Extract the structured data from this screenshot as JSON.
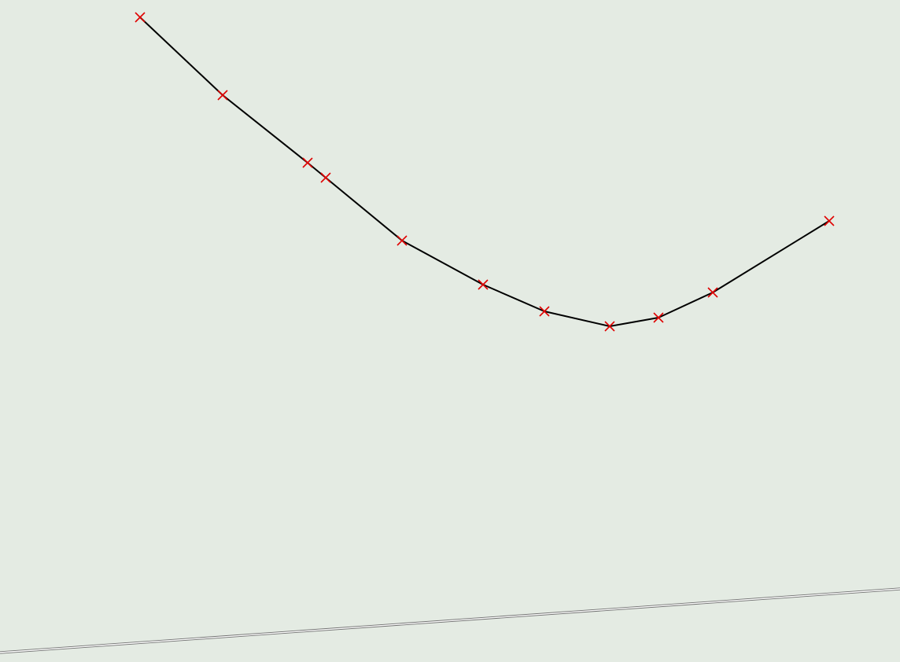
{
  "viewport": {
    "background_color": "#e4ebe3"
  },
  "polyline": {
    "line_color": "#000000",
    "marker_color": "#e00000",
    "marker_shape": "cross-icon",
    "vertex_count": 11
  },
  "ground_edge": {
    "color": "#ffffff",
    "outline_color": "#707070"
  }
}
